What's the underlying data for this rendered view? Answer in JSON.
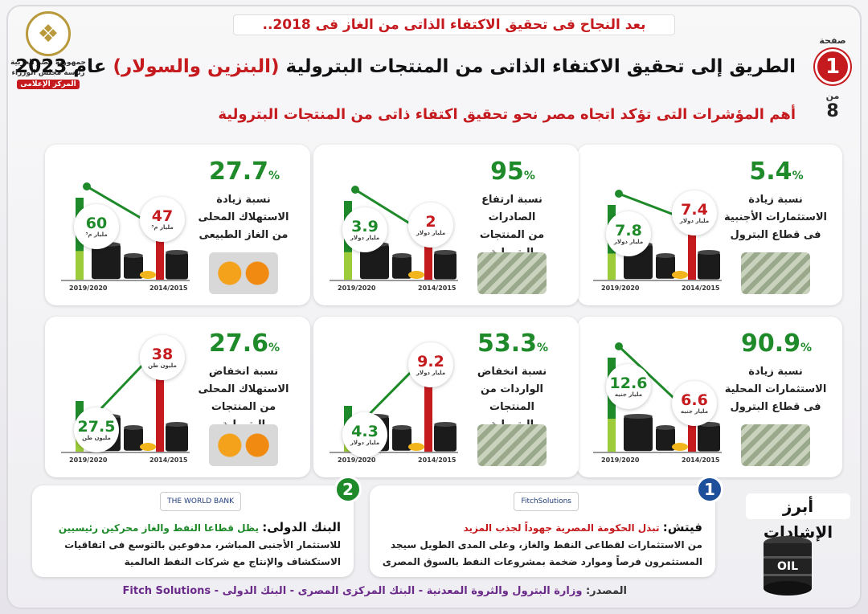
{
  "header": {
    "top_line": "بعد النجاح فى تحقيق الاكتفاء الذاتى من الغاز فى 2018..",
    "title_part1": "الطريق إلى تحقيق الاكتفاء الذاتى من المنتجات البترولية",
    "title_highlight": "(البنزين والسولار)",
    "title_part2": "عام 2023",
    "subtitle": "أهم المؤشرات التى تؤكد اتجاه مصر نحو تحقيق اكتفاء ذاتى من المنتجات البترولية"
  },
  "logo": {
    "line1": "جمهورية مصر العربية",
    "line2": "رئاسة مجلس الوزراء",
    "line3": "المركز الإعلامى"
  },
  "page": {
    "label": "صفحة",
    "number": "1",
    "of": "من",
    "total": "8"
  },
  "colors": {
    "green": "#1e8a2a",
    "red": "#c51a1e"
  },
  "cards": [
    {
      "pct_value": "5.4",
      "pct_symbol": "%",
      "desc": [
        "نسبة زيادة",
        "الاستثمارات الأجنبية",
        "فى قطاع البترول"
      ],
      "image": "money-icon",
      "years": {
        "old": "2014/2015",
        "new": "2019/2020"
      },
      "values": {
        "old": "7.4",
        "new": "7.8"
      },
      "units": {
        "old": "مليار دولار",
        "new": "مليار دولار"
      },
      "bar_fraction": {
        "old": 0.55,
        "new": 0.62
      }
    },
    {
      "pct_value": "95",
      "pct_symbol": "%",
      "desc": [
        "نسبة ارتفاع",
        "الصادرات",
        "من المنتجات البترولية"
      ],
      "image": "money-icon",
      "years": {
        "old": "2014/2015",
        "new": "2019/2020"
      },
      "values": {
        "old": "2",
        "new": "3.9"
      },
      "units": {
        "old": "مليار دولار",
        "new": "مليار دولار"
      },
      "bar_fraction": {
        "old": 0.45,
        "new": 0.65
      }
    },
    {
      "pct_value": "27.7",
      "pct_symbol": "%",
      "desc": [
        "نسبة زيادة",
        "الاستهلاك المحلى",
        "من الغاز الطبيعى"
      ],
      "image": "gas-tanks-icon",
      "years": {
        "old": "2014/2015",
        "new": "2019/2020"
      },
      "values": {
        "old": "47",
        "new": "60"
      },
      "units": {
        "old": "مليار م³",
        "new": "مليار م³"
      },
      "bar_fraction": {
        "old": 0.5,
        "new": 0.68
      }
    },
    {
      "pct_value": "90.9",
      "pct_symbol": "%",
      "desc": [
        "نسبة زيادة",
        "الاستثمارات المحلية",
        "فى قطاع البترول"
      ],
      "image": "money-icon",
      "years": {
        "old": "2014/2015",
        "new": "2019/2020"
      },
      "values": {
        "old": "6.6",
        "new": "12.6"
      },
      "units": {
        "old": "مليار جنيه",
        "new": "مليار جنيه"
      },
      "bar_fraction": {
        "old": 0.4,
        "new": 0.78
      }
    },
    {
      "pct_value": "53.3",
      "pct_symbol": "%",
      "desc": [
        "نسبة انخفاض",
        "الواردات من المنتجات",
        "البترولية"
      ],
      "image": "money-icon",
      "years": {
        "old": "2014/2015",
        "new": "2019/2020"
      },
      "values": {
        "old": "9.2",
        "new": "4.3"
      },
      "units": {
        "old": "مليار دولار",
        "new": "مليار دولار"
      },
      "bar_fraction": {
        "old": 0.72,
        "new": 0.38
      }
    },
    {
      "pct_value": "27.6",
      "pct_symbol": "%",
      "desc": [
        "نسبة انخفاض",
        "الاستهلاك المحلى",
        "من المنتجات البترولية"
      ],
      "image": "gas-tanks-icon",
      "years": {
        "old": "2014/2015",
        "new": "2019/2020"
      },
      "values": {
        "old": "38",
        "new": "27.5"
      },
      "units": {
        "old": "مليون طن",
        "new": "مليون طن"
      },
      "bar_fraction": {
        "old": 0.78,
        "new": 0.42
      }
    }
  ],
  "praise_title": "أبرز الإشادات",
  "praise": [
    {
      "num": "1",
      "logo": "FitchSolutions",
      "source": "فيتش:",
      "line1": "تبذل الحكومة المصرية جهوداً لجذب المزيد",
      "line2": "من الاستثمارات لقطاعى النفط والغاز، وعلى المدى الطويل سيجد",
      "line3": "المستثمرون فرصاً وموارد ضخمة بمشروعات النفط بالسوق المصرى"
    },
    {
      "num": "2",
      "logo": "THE WORLD BANK",
      "source": "البنك الدولى:",
      "line1": "يظل قطاعا النفط والغاز محركين رئيسيين",
      "line2": "للاستثمار الأجنبى المباشر، مدفوعين بالتوسع فى اتفاقيات",
      "line3": "الاستكشاف والإنتاج مع شركات النفط العالمية"
    }
  ],
  "barrel_label": "OIL",
  "source_label": "المصدر:",
  "source_text": "وزارة البترول والثروة المعدنية - البنك المركزى المصرى - البنك الدولى - Fitch Solutions"
}
